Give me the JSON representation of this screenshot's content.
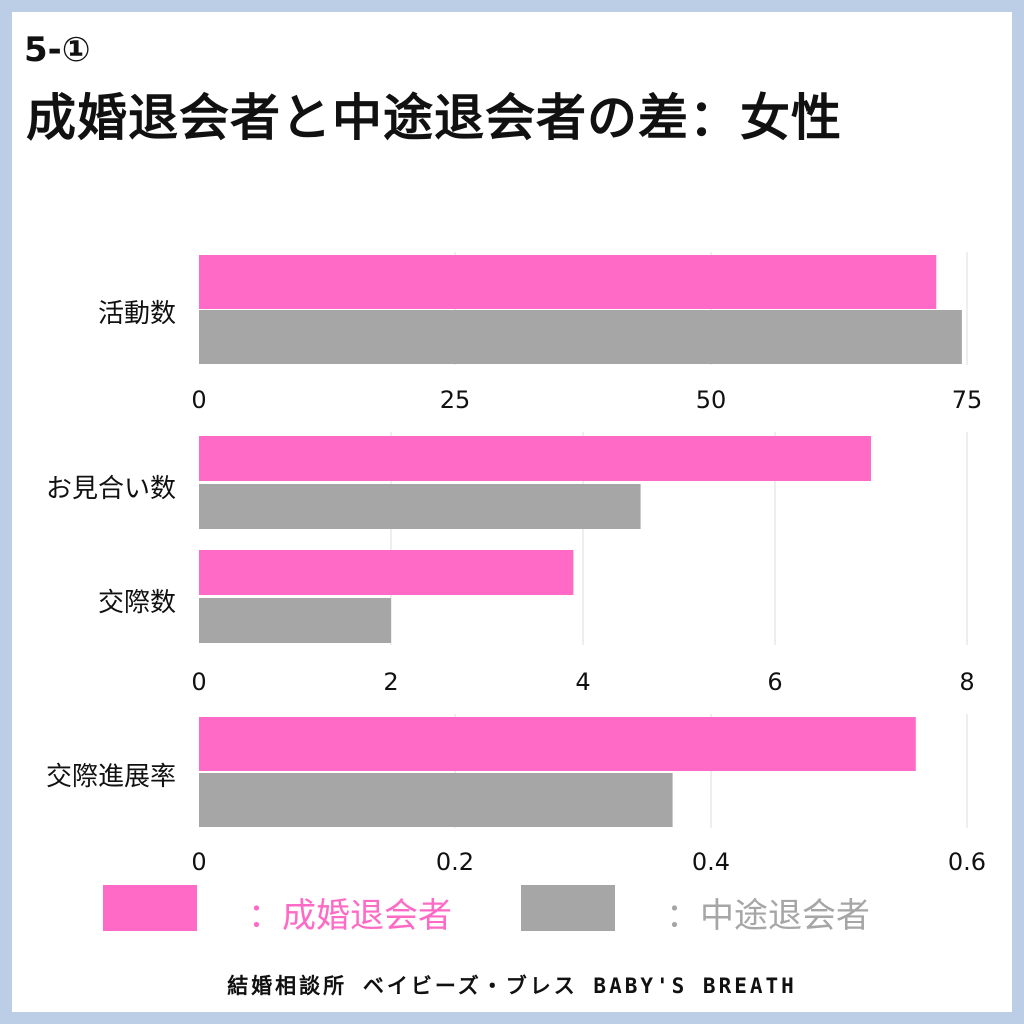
{
  "header": {
    "number": "5-①",
    "title": "成婚退会者と中途退会者の差：女性"
  },
  "colors": {
    "married": "#ff6ac6",
    "midway": "#a6a6a6",
    "grid": "#dddddd",
    "border": "#bccde6"
  },
  "legend": {
    "married_label": "：成婚退会者",
    "midway_label": "：中途退会者"
  },
  "footer": {
    "text": "結婚相談所 ベイビーズ・ブレス BABY'S BREATH"
  },
  "chart_data": [
    {
      "type": "bar",
      "orientation": "horizontal",
      "categories": [
        "活動数"
      ],
      "series": [
        {
          "name": "成婚退会者",
          "values": [
            72
          ]
        },
        {
          "name": "中途退会者",
          "values": [
            74.5
          ]
        }
      ],
      "xlim": [
        0,
        75
      ],
      "xticks": [
        "0",
        "25",
        "50",
        "75"
      ],
      "grid": true
    },
    {
      "type": "bar",
      "orientation": "horizontal",
      "categories": [
        "お見合い数",
        "交際数"
      ],
      "series": [
        {
          "name": "成婚退会者",
          "values": [
            7.0,
            3.9
          ]
        },
        {
          "name": "中途退会者",
          "values": [
            4.6,
            2.0
          ]
        }
      ],
      "xlim": [
        0,
        8
      ],
      "xticks": [
        "0",
        "2",
        "4",
        "6",
        "8"
      ],
      "grid": true
    },
    {
      "type": "bar",
      "orientation": "horizontal",
      "categories": [
        "交際進展率"
      ],
      "series": [
        {
          "name": "成婚退会者",
          "values": [
            0.56
          ]
        },
        {
          "name": "中途退会者",
          "values": [
            0.37
          ]
        }
      ],
      "xlim": [
        0,
        0.6
      ],
      "xticks": [
        "0",
        "0.2",
        "0.4",
        "0.6"
      ],
      "grid": true
    }
  ]
}
